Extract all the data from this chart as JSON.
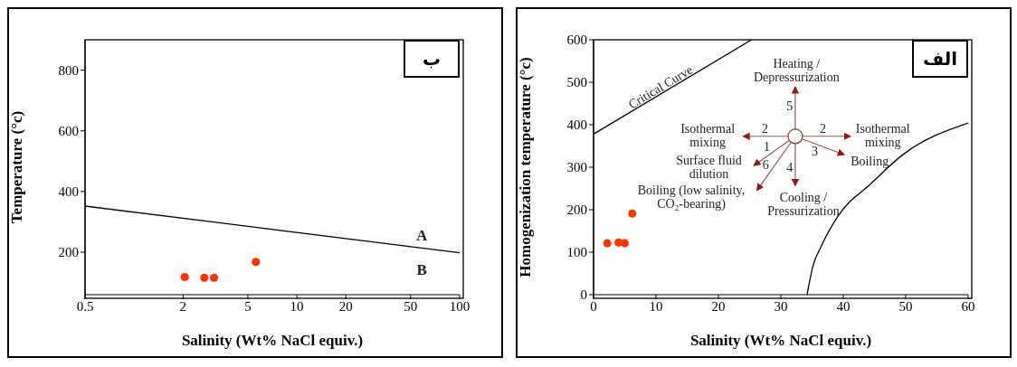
{
  "chart_data": [
    {
      "type": "scatter",
      "title": "ب",
      "xlabel": "Salinity (Wt% NaCl equiv.)",
      "ylabel": "Temperature (°c)",
      "log": "x",
      "xlim": [
        0.5,
        100
      ],
      "xticks": [
        0.5,
        2,
        5,
        10,
        20,
        50,
        100
      ],
      "ylim": [
        60,
        900
      ],
      "yticks": [
        200,
        400,
        600,
        800
      ],
      "grid": false,
      "series": [
        {
          "type": "line",
          "marker": "none",
          "color": "#000000",
          "x": [
            0.5,
            100
          ],
          "values": [
            352,
            198
          ]
        },
        {
          "marker": "circle",
          "color": "#ff3300",
          "x": [
            2.05,
            2.7,
            3.1,
            5.6
          ],
          "values": [
            118,
            116,
            116,
            168
          ]
        }
      ],
      "annotations": [
        "A",
        "B"
      ]
    },
    {
      "type": "scatter",
      "title": "الف",
      "xlabel": "Salinity (Wt% NaCl equiv.)",
      "ylabel": "Homogenization temperature (°c)",
      "xlim": [
        0,
        60
      ],
      "xticks": [
        0,
        10,
        20,
        30,
        40,
        50,
        60
      ],
      "ylim": [
        0,
        600
      ],
      "yticks": [
        0,
        100,
        200,
        300,
        400,
        500,
        600
      ],
      "grid": false,
      "series": [
        {
          "type": "line",
          "marker": "none",
          "color": "#000000",
          "x": [
            0,
            25.3
          ],
          "values": [
            378,
            600
          ]
        },
        {
          "type": "line",
          "marker": "none",
          "color": "#000000",
          "x": [
            34.2,
            35.1,
            36.6,
            39.2,
            44.4,
            49.5,
            60
          ],
          "values": [
            0,
            65,
            118,
            186,
            261,
            329,
            404
          ]
        },
        {
          "marker": "circle",
          "color": "#ff3300",
          "x": [
            2.2,
            4.0,
            5.0,
            6.2
          ],
          "values": [
            121,
            123,
            121,
            191
          ]
        }
      ],
      "annotations": [
        "Critical Curve",
        "Heating / Depressurization",
        "5",
        "2",
        "Isothermal mixing",
        "2",
        "Isothermal mixing",
        "1",
        "3",
        "Boiling",
        "Surface fluid dilution",
        "6",
        "4",
        "Boiling (low salinity, CO₂-bearing)",
        "Cooling / Pressurization"
      ]
    }
  ]
}
